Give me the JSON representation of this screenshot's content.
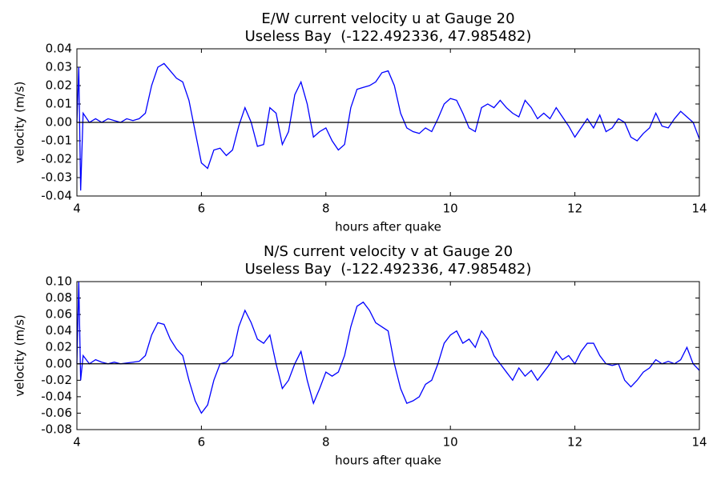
{
  "chart_data": [
    {
      "type": "line",
      "title": "E/W current velocity u at Gauge 20",
      "subtitle": "Useless Bay  (-122.492336, 47.985482)",
      "x_label": "hours after quake",
      "y_label": "velocity (m/s)",
      "xlim": [
        4,
        14
      ],
      "xticks": [
        4,
        6,
        8,
        10,
        12,
        14
      ],
      "ylim": [
        -0.04,
        0.04
      ],
      "yticks": [
        -0.04,
        -0.03,
        -0.02,
        -0.01,
        {
          "value": 0,
          "label": "0.00"
        },
        0.01,
        0.02,
        0.03,
        0.04
      ],
      "hline": 0,
      "x": [
        4.0,
        4.03,
        4.06,
        4.1,
        4.2,
        4.3,
        4.4,
        4.5,
        4.6,
        4.7,
        4.8,
        4.9,
        5.0,
        5.1,
        5.2,
        5.3,
        5.4,
        5.5,
        5.6,
        5.7,
        5.8,
        5.9,
        6.0,
        6.1,
        6.2,
        6.3,
        6.4,
        6.5,
        6.6,
        6.7,
        6.8,
        6.9,
        7.0,
        7.1,
        7.2,
        7.3,
        7.4,
        7.5,
        7.6,
        7.7,
        7.8,
        7.9,
        8.0,
        8.1,
        8.2,
        8.3,
        8.4,
        8.5,
        8.6,
        8.7,
        8.8,
        8.9,
        9.0,
        9.1,
        9.2,
        9.3,
        9.4,
        9.5,
        9.6,
        9.7,
        9.8,
        9.9,
        10.0,
        10.1,
        10.2,
        10.3,
        10.4,
        10.5,
        10.6,
        10.7,
        10.8,
        10.9,
        11.0,
        11.1,
        11.2,
        11.3,
        11.4,
        11.5,
        11.6,
        11.7,
        11.8,
        11.9,
        12.0,
        12.1,
        12.2,
        12.3,
        12.4,
        12.5,
        12.6,
        12.7,
        12.8,
        12.9,
        13.0,
        13.1,
        13.2,
        13.3,
        13.4,
        13.5,
        13.6,
        13.7,
        13.8,
        13.9,
        14.0
      ],
      "series": [
        {
          "name": "u",
          "color": "#0000ff",
          "values": [
            0,
            0.03,
            -0.037,
            0.005,
            0,
            0.002,
            0,
            0.002,
            0.001,
            0,
            0.002,
            0.001,
            0.002,
            0.005,
            0.02,
            0.03,
            0.032,
            0.028,
            0.024,
            0.022,
            0.012,
            -0.005,
            -0.022,
            -0.025,
            -0.015,
            -0.014,
            -0.018,
            -0.015,
            -0.002,
            0.008,
            0,
            -0.013,
            -0.012,
            0.008,
            0.005,
            -0.012,
            -0.005,
            0.015,
            0.022,
            0.01,
            -0.008,
            -0.005,
            -0.003,
            -0.01,
            -0.015,
            -0.012,
            0.008,
            0.018,
            0.019,
            0.02,
            0.022,
            0.027,
            0.028,
            0.02,
            0.005,
            -0.003,
            -0.005,
            -0.006,
            -0.003,
            -0.005,
            0.002,
            0.01,
            0.013,
            0.012,
            0.005,
            -0.003,
            -0.005,
            0.008,
            0.01,
            0.008,
            0.012,
            0.008,
            0.005,
            0.003,
            0.012,
            0.008,
            0.002,
            0.005,
            0.002,
            0.008,
            0.003,
            -0.002,
            -0.008,
            -0.003,
            0.002,
            -0.003,
            0.004,
            -0.005,
            -0.003,
            0.002,
            0,
            -0.008,
            -0.01,
            -0.006,
            -0.003,
            0.005,
            -0.002,
            -0.003,
            0.002,
            0.006,
            0.003,
            0,
            -0.009
          ]
        }
      ]
    },
    {
      "type": "line",
      "title": "N/S current velocity v at Gauge 20",
      "subtitle": "Useless Bay  (-122.492336, 47.985482)",
      "x_label": "hours after quake",
      "y_label": "velocity (m/s)",
      "xlim": [
        4,
        14
      ],
      "xticks": [
        4,
        6,
        8,
        10,
        12,
        14
      ],
      "ylim": [
        -0.08,
        0.1
      ],
      "yticks": [
        -0.08,
        -0.06,
        -0.04,
        -0.02,
        {
          "value": 0,
          "label": "0.00"
        },
        0.02,
        0.04,
        0.06,
        0.08,
        {
          "value": 0.1,
          "label": "0.10"
        }
      ],
      "hline": 0,
      "x": [
        4.0,
        4.03,
        4.06,
        4.1,
        4.2,
        4.3,
        4.4,
        4.5,
        4.6,
        4.7,
        4.8,
        4.9,
        5.0,
        5.1,
        5.2,
        5.3,
        5.4,
        5.5,
        5.6,
        5.7,
        5.8,
        5.9,
        6.0,
        6.1,
        6.2,
        6.3,
        6.4,
        6.5,
        6.6,
        6.7,
        6.8,
        6.9,
        7.0,
        7.1,
        7.2,
        7.3,
        7.4,
        7.5,
        7.6,
        7.7,
        7.8,
        7.9,
        8.0,
        8.1,
        8.2,
        8.3,
        8.4,
        8.5,
        8.6,
        8.7,
        8.8,
        8.9,
        9.0,
        9.1,
        9.2,
        9.3,
        9.4,
        9.5,
        9.6,
        9.7,
        9.8,
        9.9,
        10.0,
        10.1,
        10.2,
        10.3,
        10.4,
        10.5,
        10.6,
        10.7,
        10.8,
        10.9,
        11.0,
        11.1,
        11.2,
        11.3,
        11.4,
        11.5,
        11.6,
        11.7,
        11.8,
        11.9,
        12.0,
        12.1,
        12.2,
        12.3,
        12.4,
        12.5,
        12.6,
        12.7,
        12.8,
        12.9,
        13.0,
        13.1,
        13.2,
        13.3,
        13.4,
        13.5,
        13.6,
        13.7,
        13.8,
        13.9,
        14.0
      ],
      "series": [
        {
          "name": "v",
          "color": "#0000ff",
          "values": [
            0,
            0.1,
            -0.02,
            0.01,
            0,
            0.005,
            0.002,
            0,
            0.002,
            0,
            0.001,
            0.002,
            0.003,
            0.01,
            0.035,
            0.05,
            0.048,
            0.03,
            0.018,
            0.01,
            -0.02,
            -0.045,
            -0.06,
            -0.05,
            -0.02,
            0,
            0.002,
            0.01,
            0.045,
            0.065,
            0.05,
            0.03,
            0.025,
            0.035,
            0,
            -0.03,
            -0.02,
            0,
            0.015,
            -0.02,
            -0.048,
            -0.03,
            -0.01,
            -0.015,
            -0.01,
            0.01,
            0.045,
            0.07,
            0.075,
            0.065,
            0.05,
            0.045,
            0.04,
            0,
            -0.03,
            -0.048,
            -0.045,
            -0.04,
            -0.025,
            -0.02,
            0,
            0.025,
            0.035,
            0.04,
            0.025,
            0.03,
            0.02,
            0.04,
            0.03,
            0.01,
            0,
            -0.01,
            -0.02,
            -0.005,
            -0.015,
            -0.008,
            -0.02,
            -0.01,
            0,
            0.015,
            0.005,
            0.01,
            0,
            0.015,
            0.025,
            0.025,
            0.01,
            0,
            -0.002,
            0,
            -0.02,
            -0.028,
            -0.02,
            -0.01,
            -0.005,
            0.005,
            0,
            0.003,
            0,
            0.005,
            0.02,
            0,
            -0.008
          ]
        }
      ]
    }
  ]
}
